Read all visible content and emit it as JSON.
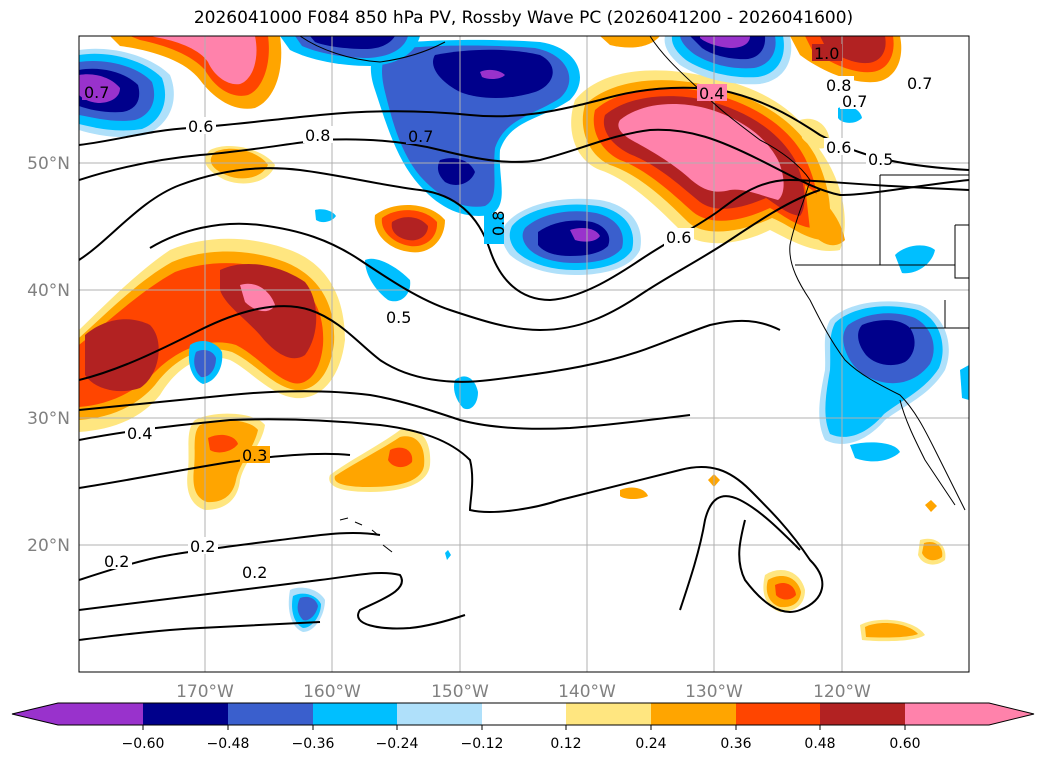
{
  "title": "2026041000 F084 850 hPa PV, Rossby Wave PC (2026041200 - 2026041600)",
  "map": {
    "lat_labels": [
      "50°N",
      "40°N",
      "30°N",
      "20°N"
    ],
    "lon_labels": [
      "170°W",
      "160°W",
      "150°W",
      "140°W",
      "130°W",
      "120°W"
    ],
    "contour_labels": [
      "0.7",
      "0.6",
      "0.8",
      "0.7",
      "0.8",
      "0.6",
      "0.5",
      "0.4",
      "0.3",
      "0.2",
      "0.2",
      "0.2",
      "0.4",
      "0.5",
      "0.7",
      "0.8",
      "0.6",
      "1.0",
      "0.7"
    ],
    "grid": true
  },
  "colorbar": {
    "ticks": [
      "−0.60",
      "−0.48",
      "−0.36",
      "−0.24",
      "−0.12",
      "0.12",
      "0.24",
      "0.36",
      "0.48",
      "0.60"
    ],
    "colors": [
      "#9932cc",
      "#00008b",
      "#3a5fcd",
      "#00bfff",
      "#afe0fa",
      "#ffffff",
      "#ffe680",
      "#ffa500",
      "#ff4500",
      "#b22222",
      "#ff82ab"
    ]
  }
}
